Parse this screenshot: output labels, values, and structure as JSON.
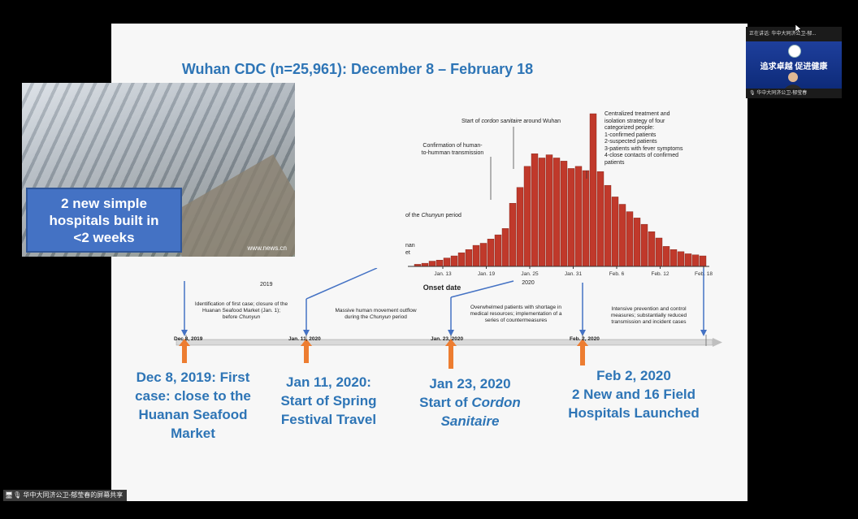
{
  "slide": {
    "title": "Wuhan CDC (n=25,961): December 8 – February 18",
    "photo": {
      "overlay_lines": [
        "2 new simple",
        "hospitals built in",
        "<2 weeks"
      ],
      "watermark": "www.news.cn"
    },
    "annotations": {
      "centralized": [
        "Centralized treatment and",
        "isolation strategy of four",
        "categorized people:",
        "1-confirmed patients",
        "2-suspected patients",
        "3-patients with fever symptoms",
        "4-close contacts of confirmed",
        "patients"
      ],
      "cordon_pre": "Start of ",
      "cordon_em": "cordon sanitaire",
      "cordon_post": " around Wuhan",
      "confirmation": [
        "Confirmation of human-",
        "to-humman transmission"
      ],
      "chunyun_pre": "of the ",
      "chunyun_em": "Chunyun",
      "chunyun_post": " period",
      "huanan": [
        "nan",
        "et"
      ]
    },
    "timeline": {
      "desc1": [
        "Identification of first case; closure of the",
        "Huanan Seafood Market (Jan. 1);",
        "before "
      ],
      "desc1_em": "Chunyun",
      "desc2_pre": [
        "Massive human movement outflow",
        "during the "
      ],
      "desc2_em": "Chunyun",
      "desc2_post": " period",
      "desc3": [
        "Overwhelmed patients with shortage in",
        "medical resources; implementation of a",
        "series of countermeasures"
      ],
      "desc4": [
        "Intensive prevention and control",
        "measures; substantially reduced",
        "transmission and incident cases"
      ],
      "dates": [
        "Dec 8, 2019",
        "Jan. 11, 2020",
        "Jan. 23, 2020",
        "Feb. 2, 2020"
      ]
    },
    "events": [
      {
        "lines": [
          "Dec 8, 2019: First",
          "case: close to the",
          "Huanan Seafood",
          "Market"
        ]
      },
      {
        "lines": [
          "Jan 11, 2020:",
          "Start of Spring",
          "Festival Travel"
        ]
      },
      {
        "lines": [
          "Jan 23, 2020",
          "Start of "
        ],
        "em": [
          "Cordon",
          "Sanitaire"
        ]
      },
      {
        "lines": [
          "Feb 2, 2020",
          "2 New and 16 Field",
          "Hospitals Launched"
        ]
      }
    ]
  },
  "video": {
    "top_label": "正在讲话: 华中大同济公卫-郁...",
    "slogan": "追求卓越 促进健康",
    "bottom_label": "华中大同济公卫-郁莹春"
  },
  "share_label": "华中大同济公卫-郁莹春的屏幕共享",
  "colors": {
    "bars": "#c0392b",
    "title": "#2e75b6",
    "arrow_orange": "#ed7d31",
    "arrow_blue": "#4472c4"
  },
  "chart_data": {
    "type": "bar",
    "title": "",
    "xlabel": "Onset date",
    "ylabel": "",
    "year_labels": [
      "2019",
      "2020"
    ],
    "tick_labels": [
      "Jan. 13",
      "Jan. 19",
      "Jan. 25",
      "Jan. 31",
      "Feb. 6",
      "Feb. 12",
      "Feb. 18"
    ],
    "values": [
      2,
      3,
      5,
      6,
      8,
      10,
      13,
      16,
      20,
      22,
      26,
      30,
      36,
      60,
      75,
      95,
      107,
      103,
      106,
      103,
      100,
      93,
      95,
      91,
      145,
      90,
      77,
      66,
      59,
      52,
      46,
      40,
      33,
      27,
      19,
      16,
      14,
      12,
      11,
      10
    ]
  }
}
